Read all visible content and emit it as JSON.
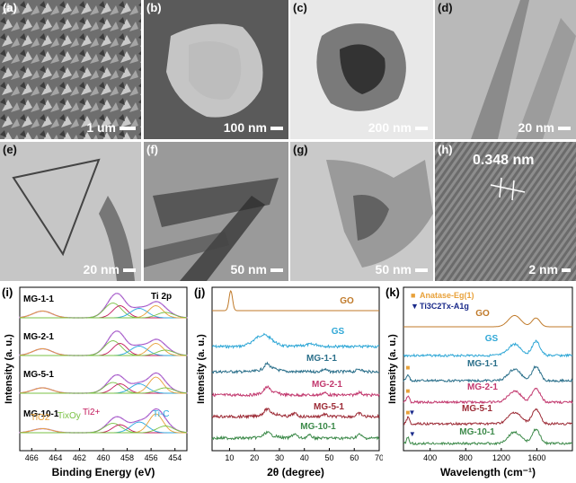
{
  "micrographs": [
    {
      "label": "(a)",
      "scale": "1 um"
    },
    {
      "label": "(b)",
      "scale": "100 nm"
    },
    {
      "label": "(c)",
      "scale": "200 nm"
    },
    {
      "label": "(d)",
      "scale": "20 nm"
    },
    {
      "label": "(e)",
      "scale": "20 nm"
    },
    {
      "label": "(f)",
      "scale": "50 nm"
    },
    {
      "label": "(g)",
      "scale": "50 nm"
    },
    {
      "label": "(h)",
      "scale": "2 nm",
      "annotation": "0.348 nm"
    }
  ],
  "chart_data": [
    {
      "panel": "(i)",
      "type": "line",
      "corner_label": "Ti 2p",
      "xlabel": "Binding Energy (eV)",
      "ylabel": "Intensity (a. u.)",
      "x_ticks": [
        466,
        464,
        462,
        460,
        458,
        456,
        454
      ],
      "xlim": [
        467,
        453
      ],
      "series": [
        {
          "name": "MG-1-1",
          "peaks": [
            [
              465.1,
              0.25
            ],
            [
              459.2,
              0.55
            ],
            [
              458.6,
              0.45
            ],
            [
              457.0,
              0.35
            ],
            [
              455.6,
              0.45
            ],
            [
              454.8,
              0.2
            ]
          ]
        },
        {
          "name": "MG-2-1",
          "peaks": [
            [
              465.1,
              0.25
            ],
            [
              459.2,
              0.55
            ],
            [
              458.6,
              0.45
            ],
            [
              457.0,
              0.35
            ],
            [
              455.6,
              0.45
            ],
            [
              454.8,
              0.2
            ]
          ]
        },
        {
          "name": "MG-5-1",
          "peaks": [
            [
              465.1,
              0.2
            ],
            [
              459.2,
              0.4
            ],
            [
              458.6,
              0.35
            ],
            [
              457.0,
              0.35
            ],
            [
              455.6,
              0.6
            ],
            [
              454.8,
              0.2
            ]
          ]
        },
        {
          "name": "MG-10-1",
          "peaks": [
            [
              465.1,
              0.15
            ],
            [
              459.2,
              0.35
            ],
            [
              458.6,
              0.3
            ],
            [
              457.0,
              0.4
            ],
            [
              455.6,
              0.7
            ],
            [
              454.8,
              0.25
            ]
          ]
        }
      ],
      "component_labels": [
        "TiO2",
        "TixOy",
        "Ti2+",
        "Ti-C"
      ],
      "component_colors": [
        "#e8a13a",
        "#7ac143",
        "#c2185b",
        "#29a8e0"
      ]
    },
    {
      "panel": "(j)",
      "type": "line",
      "xlabel": "2θ (degree)",
      "ylabel": "Intensity (a. u.)",
      "x_ticks": [
        10,
        20,
        30,
        40,
        50,
        60,
        70
      ],
      "xlim": [
        3,
        70
      ],
      "series": [
        {
          "name": "GO",
          "color": "#c07a2a",
          "peaks": [
            [
              10.5,
              2.2,
              0.7
            ]
          ]
        },
        {
          "name": "GS",
          "color": "#2fa7d6",
          "peaks": [
            [
              23.5,
              1.3,
              3.5
            ],
            [
              43,
              0.25,
              3
            ]
          ]
        },
        {
          "name": "MG-1-1",
          "color": "#2a6f8a",
          "peaks": [
            [
              25,
              0.5,
              1
            ],
            [
              26,
              0.4,
              3
            ],
            [
              48,
              0.25,
              1
            ],
            [
              62,
              0.3,
              1
            ]
          ]
        },
        {
          "name": "MG-2-1",
          "color": "#c2386e",
          "peaks": [
            [
              25,
              0.5,
              1
            ],
            [
              26,
              0.4,
              3
            ],
            [
              48,
              0.25,
              1
            ],
            [
              62,
              0.3,
              1
            ]
          ]
        },
        {
          "name": "MG-5-1",
          "color": "#9c2a35",
          "peaks": [
            [
              25,
              0.45,
              1
            ],
            [
              26,
              0.4,
              3
            ],
            [
              36,
              0.35,
              1
            ],
            [
              48,
              0.25,
              1
            ],
            [
              62,
              0.35,
              1
            ]
          ]
        },
        {
          "name": "MG-10-1",
          "color": "#3d8a4a",
          "peaks": [
            [
              25,
              0.35,
              1
            ],
            [
              26,
              0.3,
              3
            ],
            [
              36,
              0.45,
              1
            ],
            [
              42,
              0.3,
              1
            ],
            [
              62,
              0.4,
              1
            ]
          ]
        }
      ]
    },
    {
      "panel": "(k)",
      "type": "line",
      "xlabel": "Wavelength (cm⁻¹)",
      "ylabel": "Intensity (a. u.)",
      "x_ticks": [
        400,
        800,
        1200,
        1600
      ],
      "xlim": [
        100,
        2000
      ],
      "legend": [
        {
          "marker": "■",
          "text": "Anatase-Eg(1)",
          "color": "#e8a13a"
        },
        {
          "marker": "▼",
          "text": "Ti3C2Tx-A1g",
          "color": "#1a2a8a"
        }
      ],
      "series": [
        {
          "name": "GO",
          "color": "#c07a2a"
        },
        {
          "name": "GS",
          "color": "#2fa7d6"
        },
        {
          "name": "MG-1-1",
          "color": "#2a6f8a"
        },
        {
          "name": "MG-2-1",
          "color": "#c2386e"
        },
        {
          "name": "MG-5-1",
          "color": "#9c2a35"
        },
        {
          "name": "MG-10-1",
          "color": "#3d8a4a"
        }
      ]
    }
  ]
}
